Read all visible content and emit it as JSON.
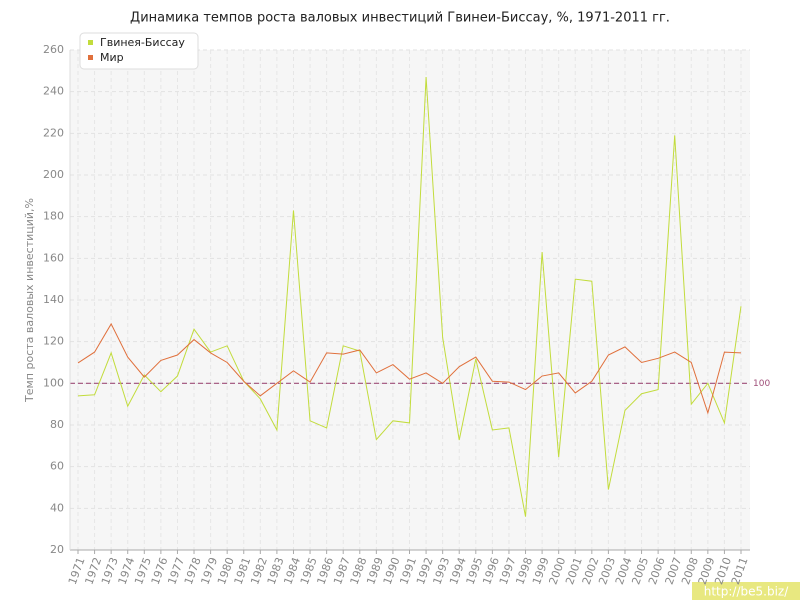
{
  "chart_data": {
    "type": "line",
    "title": "Динамика темпов роста валовых инвестиций Гвинеи-Биссау, %, 1971-2011 гг.",
    "y_label": "Темп роста валовых инвестиций,%",
    "categories": [
      "1971",
      "1972",
      "1973",
      "1974",
      "1975",
      "1976",
      "1977",
      "1978",
      "1979",
      "1980",
      "1981",
      "1982",
      "1983",
      "1984",
      "1985",
      "1986",
      "1987",
      "1988",
      "1989",
      "1990",
      "1991",
      "1992",
      "1993",
      "1994",
      "1995",
      "1996",
      "1997",
      "1998",
      "1999",
      "2000",
      "2001",
      "2002",
      "2003",
      "2004",
      "2005",
      "2006",
      "2007",
      "2008",
      "2009",
      "2010",
      "2011"
    ],
    "series": [
      {
        "name": "Гвинея-Биссау",
        "color": "#c2dc3c",
        "values": [
          94,
          94.5,
          114.6,
          89,
          104,
          96,
          103.5,
          126,
          115,
          118,
          101,
          92.5,
          77.6,
          183,
          82,
          78.6,
          118,
          115.5,
          73,
          82,
          81,
          247,
          122,
          72.8,
          111.7,
          77.6,
          78.6,
          36,
          163,
          64.6,
          150,
          149,
          49,
          87,
          95,
          97,
          219,
          90,
          100,
          81,
          137
        ]
      },
      {
        "name": "Мир",
        "color": "#e0703c",
        "values": [
          109.8,
          115,
          128.5,
          112.6,
          103,
          111,
          113.6,
          121,
          114.6,
          110,
          101,
          94,
          100,
          106,
          100.6,
          114.6,
          114,
          116,
          105,
          109,
          102,
          105,
          100,
          108,
          112.6,
          101,
          100.6,
          97,
          103.5,
          105,
          95.4,
          101,
          113.6,
          117.5,
          110,
          112,
          115,
          110,
          85.8,
          115,
          114.6
        ]
      }
    ],
    "ylim": [
      20,
      260
    ],
    "yticks": [
      20,
      40,
      60,
      80,
      100,
      120,
      140,
      160,
      180,
      200,
      220,
      240,
      260
    ],
    "grid": true,
    "legend": "top-left",
    "reference_line": 100,
    "reference_color": "#a0507a",
    "watermark": "http://be5.biz/"
  }
}
